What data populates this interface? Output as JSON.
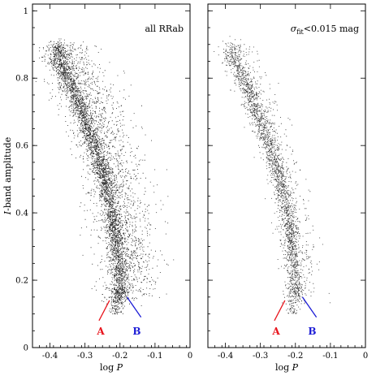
{
  "chart_data": [
    {
      "type": "scatter",
      "title": "all RRab",
      "xlabel": "log P",
      "ylabel": "I-band amplitude",
      "xlim": [
        -0.45,
        0.0
      ],
      "ylim": [
        0.0,
        1.02
      ],
      "x_ticks": [
        -0.4,
        -0.3,
        -0.2,
        -0.1,
        0
      ],
      "x_tick_labels": [
        "-0.4",
        "-0.3",
        "-0.2",
        "-0.1",
        "0"
      ],
      "y_ticks": [
        0,
        0.2,
        0.4,
        0.6,
        0.8,
        1
      ],
      "y_tick_labels": [
        "0",
        "0.2",
        "0.4",
        "0.6",
        "0.8",
        "1"
      ],
      "series": [
        {
          "ridge": [
            [
              -0.38,
              0.86
            ],
            [
              -0.35,
              0.8
            ],
            [
              -0.32,
              0.72
            ],
            [
              -0.29,
              0.64
            ],
            [
              -0.26,
              0.55
            ],
            [
              -0.23,
              0.43
            ],
            [
              -0.21,
              0.3
            ],
            [
              -0.2,
              0.18
            ]
          ],
          "density": "high",
          "color": "#000000"
        }
      ],
      "annotations": [
        {
          "label": "A",
          "color": "#e8141c",
          "line": [
            [
              -0.26,
              0.08
            ],
            [
              -0.23,
              0.14
            ]
          ],
          "text_at": [
            -0.255,
            0.038
          ]
        },
        {
          "label": "B",
          "color": "#1c1cd6",
          "line": [
            [
              -0.18,
              0.15
            ],
            [
              -0.14,
              0.09
            ]
          ],
          "text_at": [
            -0.152,
            0.038
          ]
        }
      ],
      "grid": false
    },
    {
      "type": "scatter",
      "title": "σfit<0.015 mag",
      "title_main": "σ",
      "title_sub": "fit",
      "title_rest": "<0.015 mag",
      "xlabel": "log P",
      "ylabel": "",
      "xlim": [
        -0.45,
        0.0
      ],
      "ylim": [
        0.0,
        1.02
      ],
      "x_ticks": [
        -0.4,
        -0.3,
        -0.2,
        -0.1,
        0
      ],
      "x_tick_labels": [
        "-0.4",
        "-0.3",
        "-0.2",
        "-0.1",
        "0"
      ],
      "y_ticks": [
        0,
        0.2,
        0.4,
        0.6,
        0.8,
        1
      ],
      "series": [
        {
          "ridge": [
            [
              -0.38,
              0.86
            ],
            [
              -0.35,
              0.8
            ],
            [
              -0.32,
              0.72
            ],
            [
              -0.29,
              0.64
            ],
            [
              -0.26,
              0.55
            ],
            [
              -0.23,
              0.43
            ],
            [
              -0.21,
              0.3
            ],
            [
              -0.2,
              0.18
            ]
          ],
          "density": "low",
          "color": "#000000"
        }
      ],
      "annotations": [
        {
          "label": "A",
          "color": "#e8141c",
          "line": [
            [
              -0.26,
              0.08
            ],
            [
              -0.23,
              0.14
            ]
          ],
          "text_at": [
            -0.255,
            0.038
          ]
        },
        {
          "label": "B",
          "color": "#1c1cd6",
          "line": [
            [
              -0.18,
              0.15
            ],
            [
              -0.14,
              0.09
            ]
          ],
          "text_at": [
            -0.152,
            0.038
          ]
        }
      ],
      "grid": false
    }
  ]
}
